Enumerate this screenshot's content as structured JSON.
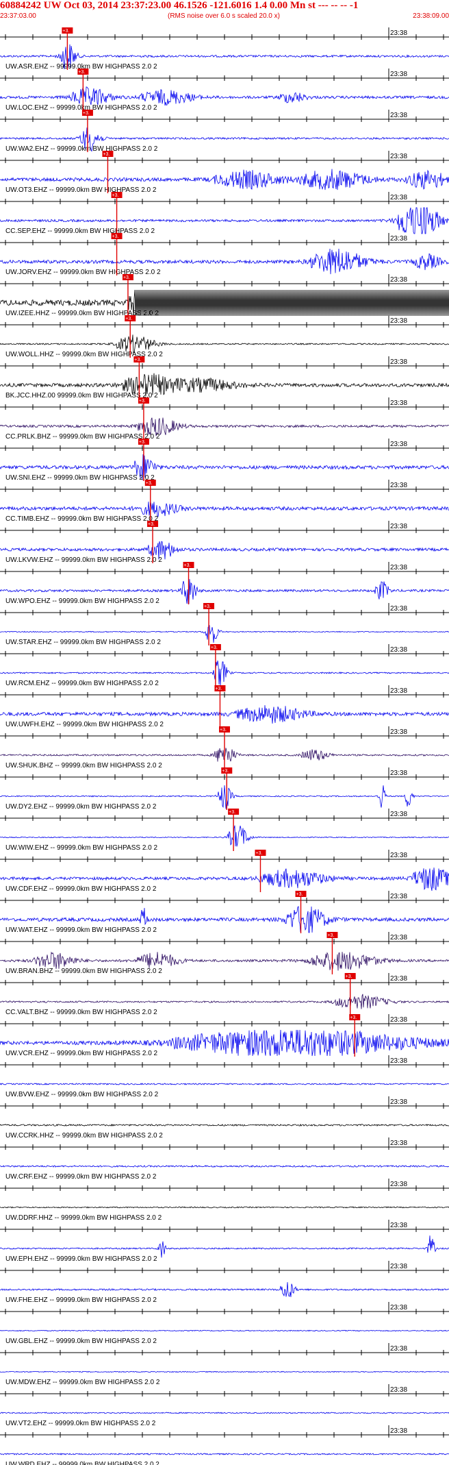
{
  "header": {
    "title": "60884242 UW Oct 03, 2014 23:37:23.00   46.1526 -121.6016  1.4 0.00 Mn st --- -- --   -1",
    "start_time": "23:37:03.00",
    "end_time": "23:38:09.00",
    "noise_note": "(RMS noise over 6.0 s scaled 20.0 x)"
  },
  "minute_mark_label": "23:38",
  "pick_label": "+3.",
  "colors": {
    "header_text": "#e00000",
    "trace_blue": "#0000ee",
    "trace_black": "#000000",
    "trace_purple": "#2a0a60",
    "pick": "#e00000",
    "axis": "#000000",
    "label": "#000000"
  },
  "traces": [
    {
      "label": "UW.ASR.EHZ -- 99999.0km BW  HIGHPASS  2.0  2",
      "pick": 0.15,
      "color": "blue",
      "amp": 0.18,
      "bursts": [
        [
          0.15,
          0.012,
          2.5
        ]
      ]
    },
    {
      "label": "UW.LOC.EHZ -- 99999.0km BW  HIGHPASS  2.0  2",
      "pick": 0.185,
      "color": "blue",
      "amp": 0.22,
      "bursts": [
        [
          0.2,
          0.03,
          1.6
        ],
        [
          0.37,
          0.04,
          1.2
        ],
        [
          0.65,
          0.02,
          0.9
        ]
      ]
    },
    {
      "label": "UW.WA2.EHZ -- 99999.0km BW  HIGHPASS  2.0  2",
      "pick": 0.195,
      "color": "blue",
      "amp": 0.16,
      "bursts": [
        [
          0.2,
          0.015,
          2.2
        ]
      ]
    },
    {
      "label": "UW.OT3.EHZ -- 99999.0km BW  HIGHPASS  2.0  2",
      "pick": 0.24,
      "color": "blue",
      "amp": 0.3,
      "bursts": [
        [
          0.55,
          0.05,
          1.4
        ],
        [
          0.74,
          0.05,
          1.6
        ],
        [
          0.95,
          0.03,
          1.5
        ]
      ]
    },
    {
      "label": "CC.SEP.EHZ -- 99999.0km BW  HIGHPASS  2.0  2",
      "pick": 0.26,
      "color": "blue",
      "amp": 0.2,
      "bursts": [
        [
          0.93,
          0.03,
          4.0
        ]
      ]
    },
    {
      "label": "UW.JORV.EHZ -- 99999.0km BW  HIGHPASS  2.0  2",
      "pick": 0.26,
      "color": "blue",
      "amp": 0.28,
      "bursts": [
        [
          0.75,
          0.04,
          2.2
        ],
        [
          0.95,
          0.02,
          1.2
        ]
      ]
    },
    {
      "label": "UW.IZEE.HHZ -- 99999.0km BW  HIGHPASS  2.0  2",
      "pick": 0.285,
      "color": "black",
      "amp": 0.5,
      "bursts": [
        [
          0.3,
          0.01,
          2.0
        ]
      ],
      "clipped": [
        0.3,
        1.0
      ]
    },
    {
      "label": "UW.WOLL.HHZ -- 99999.0km BW  HIGHPASS  2.0  2",
      "pick": 0.29,
      "color": "black",
      "amp": 0.12,
      "bursts": [
        [
          0.3,
          0.03,
          1.5
        ]
      ]
    },
    {
      "label": "BK.JCC.HHZ.00 99999.0km BW  HIGHPASS  2.0  2",
      "pick": 0.31,
      "color": "black",
      "amp": 0.3,
      "bursts": [
        [
          0.33,
          0.04,
          1.8
        ],
        [
          0.45,
          0.05,
          1.0
        ]
      ]
    },
    {
      "label": "CC.PRLK.BHZ -- 99999.0km BW  HIGHPASS  2.0  2",
      "pick": 0.32,
      "color": "purple",
      "amp": 0.2,
      "bursts": [
        [
          0.35,
          0.03,
          1.6
        ]
      ]
    },
    {
      "label": "UW.SNI.EHZ -- 99999.0km BW  HIGHPASS  2.0  2",
      "pick": 0.32,
      "color": "blue",
      "amp": 0.3,
      "bursts": [
        [
          0.32,
          0.015,
          2.2
        ]
      ]
    },
    {
      "label": "CC.TIMB.EHZ -- 99999.0km BW  HIGHPASS  2.0  2",
      "pick": 0.335,
      "color": "blue",
      "amp": 0.3,
      "bursts": [
        [
          0.35,
          0.03,
          1.2
        ]
      ]
    },
    {
      "label": "UW.LKVW.EHZ -- 99999.0km BW  HIGHPASS  2.0  2",
      "pick": 0.34,
      "color": "blue",
      "amp": 0.25,
      "bursts": [
        [
          0.36,
          0.02,
          1.6
        ]
      ]
    },
    {
      "label": "UW.WPO.EHZ -- 99999.0km BW  HIGHPASS  2.0  2",
      "pick": 0.42,
      "color": "blue",
      "amp": 0.2,
      "bursts": [
        [
          0.42,
          0.01,
          3.0
        ],
        [
          0.85,
          0.01,
          1.6
        ]
      ]
    },
    {
      "label": "UW.STAR.EHZ -- 99999.0km BW  HIGHPASS  2.0  2",
      "pick": 0.465,
      "color": "blue",
      "amp": 0.08,
      "bursts": [
        [
          0.47,
          0.01,
          2.2
        ]
      ]
    },
    {
      "label": "UW.RCM.EHZ -- 99999.0km BW  HIGHPASS  2.0  2",
      "pick": 0.48,
      "color": "blue",
      "amp": 0.12,
      "bursts": [
        [
          0.49,
          0.01,
          2.5
        ]
      ]
    },
    {
      "label": "UW.UWFH.EHZ -- 99999.0km BW  HIGHPASS  2.0  2",
      "pick": 0.49,
      "color": "blue",
      "amp": 0.3,
      "bursts": [
        [
          0.6,
          0.05,
          1.4
        ]
      ]
    },
    {
      "label": "UW.SHUK.BHZ -- 99999.0km BW  HIGHPASS  2.0  2",
      "pick": 0.5,
      "color": "purple",
      "amp": 0.14,
      "bursts": [
        [
          0.5,
          0.015,
          1.8
        ],
        [
          0.7,
          0.02,
          1.0
        ]
      ]
    },
    {
      "label": "UW.DY2.EHZ -- 99999.0km BW  HIGHPASS  2.0  2",
      "pick": 0.505,
      "color": "blue",
      "amp": 0.1,
      "bursts": [
        [
          0.5,
          0.01,
          2.2
        ],
        [
          0.85,
          0.005,
          2.6
        ],
        [
          0.91,
          0.005,
          2.4
        ]
      ]
    },
    {
      "label": "UW.WIW.EHZ -- 99999.0km BW  HIGHPASS  2.0  2",
      "pick": 0.52,
      "color": "blue",
      "amp": 0.08,
      "bursts": [
        [
          0.53,
          0.015,
          2.2
        ]
      ]
    },
    {
      "label": "UW.CDF.EHZ -- 99999.0km BW  HIGHPASS  2.0  2",
      "pick": 0.58,
      "color": "blue",
      "amp": 0.25,
      "bursts": [
        [
          0.65,
          0.05,
          1.5
        ],
        [
          0.96,
          0.03,
          2.0
        ]
      ]
    },
    {
      "label": "UW.WAT.EHZ -- 99999.0km BW  HIGHPASS  2.0  2",
      "pick": 0.67,
      "color": "blue",
      "amp": 0.3,
      "bursts": [
        [
          0.68,
          0.03,
          2.4
        ],
        [
          0.32,
          0.005,
          2.0
        ]
      ]
    },
    {
      "label": "UW.BRAN.BHZ -- 99999.0km BW  HIGHPASS  2.0  2",
      "pick": 0.74,
      "color": "purple",
      "amp": 0.2,
      "bursts": [
        [
          0.12,
          0.03,
          1.4
        ],
        [
          0.35,
          0.03,
          1.4
        ],
        [
          0.76,
          0.05,
          1.6
        ]
      ]
    },
    {
      "label": "CC.VALT.BHZ -- 99999.0km BW  HIGHPASS  2.0  2",
      "pick": 0.78,
      "color": "purple",
      "amp": 0.14,
      "bursts": [
        [
          0.8,
          0.04,
          1.2
        ]
      ]
    },
    {
      "label": "UW.VCR.EHZ -- 99999.0km BW  HIGHPASS  2.0  2",
      "pick": 0.79,
      "color": "blue",
      "amp": 0.3,
      "bursts": [
        [
          0.65,
          0.18,
          2.4
        ]
      ]
    },
    {
      "label": "UW.BVW.EHZ -- 99999.0km BW  HIGHPASS  2.0  2",
      "pick": null,
      "color": "blue",
      "amp": 0.12,
      "bursts": []
    },
    {
      "label": "UW.CCRK.HHZ -- 99999.0km BW  HIGHPASS  2.0  2",
      "pick": null,
      "color": "black",
      "amp": 0.14,
      "bursts": []
    },
    {
      "label": "UW.CRF.EHZ -- 99999.0km BW  HIGHPASS  2.0  2",
      "pick": null,
      "color": "blue",
      "amp": 0.14,
      "bursts": []
    },
    {
      "label": "UW.DDRF.HHZ -- 99999.0km BW  HIGHPASS  2.0  2",
      "pick": null,
      "color": "black",
      "amp": 0.1,
      "bursts": []
    },
    {
      "label": "UW.EPH.EHZ -- 99999.0km BW  HIGHPASS  2.0  2",
      "pick": null,
      "color": "blue",
      "amp": 0.12,
      "bursts": [
        [
          0.36,
          0.005,
          2.0
        ],
        [
          0.96,
          0.005,
          2.4
        ]
      ]
    },
    {
      "label": "UW.FHE.EHZ -- 99999.0km BW  HIGHPASS  2.0  2",
      "pick": null,
      "color": "blue",
      "amp": 0.14,
      "bursts": [
        [
          0.64,
          0.01,
          1.8
        ]
      ]
    },
    {
      "label": "UW.GBL.EHZ -- 99999.0km BW  HIGHPASS  2.0  2",
      "pick": null,
      "color": "blue",
      "amp": 0.08,
      "bursts": []
    },
    {
      "label": "UW.MDW.EHZ -- 99999.0km BW  HIGHPASS  2.0  2",
      "pick": null,
      "color": "blue",
      "amp": 0.08,
      "bursts": []
    },
    {
      "label": "UW.VT2.EHZ -- 99999.0km BW  HIGHPASS  2.0  2",
      "pick": null,
      "color": "blue",
      "amp": 0.1,
      "bursts": []
    },
    {
      "label": "UW.WRD.EHZ -- 99999.0km BW  HIGHPASS  2.0  2",
      "pick": null,
      "color": "blue",
      "amp": 0.12,
      "bursts": []
    }
  ]
}
